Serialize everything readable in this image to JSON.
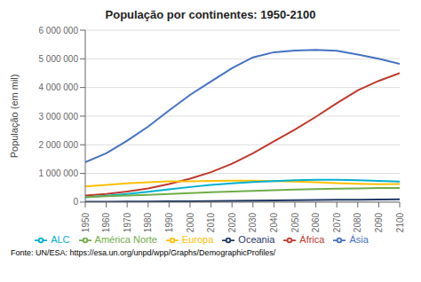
{
  "chart_data": {
    "type": "line",
    "title": "População por continentes: 1950-2100",
    "ylabel": "População (em mil)",
    "annotations": [
      "Fonte: UN/ESA: ",
      "https://esa.un.org/unpd/wpp/Graphs/DemographicProfiles/"
    ],
    "x": [
      1950,
      1960,
      1970,
      1980,
      1990,
      2000,
      2010,
      2020,
      2030,
      2040,
      2050,
      2060,
      2070,
      2080,
      2090,
      2100
    ],
    "xlim": [
      1950,
      2100
    ],
    "xticks": [
      1950,
      1960,
      1970,
      1980,
      1990,
      2000,
      2010,
      2020,
      2030,
      2040,
      2050,
      2060,
      2070,
      2080,
      2090,
      2100
    ],
    "series": [
      {
        "name": "África",
        "color": "#c0392b",
        "values": [
          229000,
          284000,
          366000,
          478000,
          634000,
          818000,
          1044000,
          1341000,
          1704000,
          2118000,
          2528000,
          2975000,
          3450000,
          3900000,
          4230000,
          4500000
        ]
      },
      {
        "name": "Ásia",
        "color": "#4472c4",
        "values": [
          1395000,
          1700000,
          2143000,
          2634000,
          3202000,
          3741000,
          4209000,
          4676000,
          5050000,
          5230000,
          5290000,
          5310000,
          5280000,
          5150000,
          5000000,
          4820000
        ]
      },
      {
        "name": "Europa",
        "color": "#ffc000",
        "values": [
          549000,
          604000,
          657000,
          693000,
          721000,
          726000,
          736000,
          748000,
          748000,
          735000,
          716000,
          692000,
          665000,
          640000,
          625000,
          630000
        ]
      },
      {
        "name": "ALC",
        "color": "#00b0d0",
        "values": [
          168000,
          218000,
          286000,
          363000,
          444000,
          527000,
          602000,
          655000,
          700000,
          735000,
          762000,
          775000,
          775000,
          760000,
          740000,
          715000
        ]
      },
      {
        "name": "América Norte",
        "color": "#70ad47",
        "values": [
          172000,
          204000,
          232000,
          256000,
          283000,
          314000,
          345000,
          369000,
          393000,
          415000,
          435000,
          455000,
          470000,
          480000,
          490000,
          495000
        ]
      },
      {
        "name": "Oceania",
        "color": "#1f3864",
        "values": [
          13000,
          16000,
          20000,
          23000,
          27000,
          31000,
          37000,
          43000,
          50000,
          57000,
          64000,
          72000,
          79000,
          86000,
          92000,
          98000
        ]
      }
    ],
    "ylim": [
      0,
      6000000
    ],
    "yticks": [
      0,
      {
        "value": 1000000,
        "label": "1 000 000"
      },
      {
        "value": 2000000,
        "label": "2 000 000"
      },
      {
        "value": 3000000,
        "label": "3 000 000"
      },
      {
        "value": 4000000,
        "label": "4 000 000"
      },
      {
        "value": 5000000,
        "label": "5 000 000"
      },
      {
        "value": 6000000,
        "label": "6 000 000"
      }
    ],
    "grid": true,
    "legend": "bottom"
  }
}
